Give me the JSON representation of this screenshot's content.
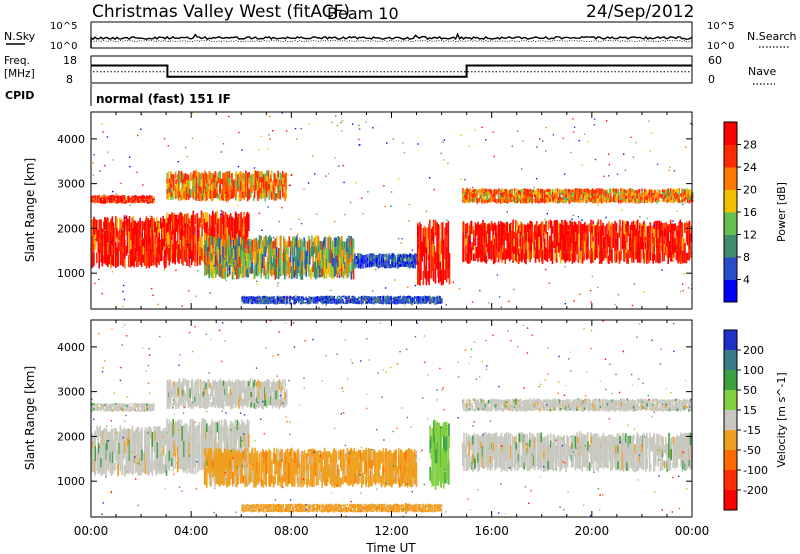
{
  "header": {
    "title": "Christmas Valley West (fitACF)",
    "beam": "Beam 10",
    "date": "24/Sep/2012"
  },
  "noise_panel": {
    "left_label": "N.Sky",
    "right_label": "N.Search",
    "tick_top": "10^5",
    "tick_bottom": "10^0",
    "colors": {
      "sky": "#000000",
      "search": "#000000"
    }
  },
  "freq_panel": {
    "left_label_1": "Freq.",
    "left_label_2": "[MHz]",
    "left_ticks": [
      "18",
      "8"
    ],
    "right_ticks": [
      "60",
      "0"
    ],
    "right_label": "Nave",
    "cpid_label": "CPID",
    "cpid_text": "normal (fast) 151 IF",
    "freq_series": [
      {
        "t": 0.0,
        "mhz": 14.5
      },
      {
        "t": 3.05,
        "mhz": 14.5
      },
      {
        "t": 3.05,
        "mhz": 10.3
      },
      {
        "t": 15.0,
        "mhz": 10.3
      },
      {
        "t": 15.0,
        "mhz": 14.5
      },
      {
        "t": 24.0,
        "mhz": 14.5
      }
    ],
    "nave_dotted_level": 25
  },
  "chart_data": [
    {
      "type": "heatmap",
      "title": "Power",
      "xlabel": "",
      "ylabel": "Slant Range [km]",
      "ylim": [
        200,
        4600
      ],
      "yticks": [
        "1000",
        "2000",
        "3000",
        "4000"
      ],
      "xlim": [
        0,
        24
      ],
      "colorbar": {
        "label": "Power [dB]",
        "tick_labels": [
          "4",
          "8",
          "12",
          "16",
          "20",
          "24",
          "28"
        ],
        "range": [
          0,
          32
        ],
        "colors": [
          "#0000ff",
          "#2a4cc8",
          "#3f8c6e",
          "#66c050",
          "#f0c000",
          "#ff7a00",
          "#ff2a00",
          "#ff0000"
        ]
      },
      "regions": [
        {
          "t0": 0.0,
          "t1": 3.0,
          "r0": 1100,
          "r1": 2300,
          "level": "high"
        },
        {
          "t0": 0.0,
          "t1": 2.5,
          "r0": 2550,
          "r1": 2750,
          "level": "high"
        },
        {
          "t0": 3.0,
          "t1": 6.3,
          "r0": 1150,
          "r1": 2400,
          "level": "high"
        },
        {
          "t0": 3.0,
          "t1": 7.8,
          "r0": 2600,
          "r1": 3300,
          "level": "mid"
        },
        {
          "t0": 4.5,
          "t1": 10.5,
          "r0": 850,
          "r1": 1850,
          "level": "mixed"
        },
        {
          "t0": 10.5,
          "t1": 13.0,
          "r0": 1100,
          "r1": 1450,
          "level": "low"
        },
        {
          "t0": 13.0,
          "t1": 14.3,
          "r0": 700,
          "r1": 2200,
          "level": "high"
        },
        {
          "t0": 14.8,
          "t1": 24.0,
          "r0": 1200,
          "r1": 2200,
          "level": "high"
        },
        {
          "t0": 14.8,
          "t1": 24.0,
          "r0": 2550,
          "r1": 2900,
          "level": "mid"
        },
        {
          "t0": 6.0,
          "t1": 14.0,
          "r0": 300,
          "r1": 500,
          "level": "low"
        }
      ]
    },
    {
      "type": "heatmap",
      "title": "Velocity",
      "xlabel": "Time UT",
      "ylabel": "Slant Range [km]",
      "ylim": [
        200,
        4600
      ],
      "yticks": [
        "1000",
        "2000",
        "3000",
        "4000"
      ],
      "xlim": [
        0,
        24
      ],
      "xticks": [
        "00:00",
        "04:00",
        "08:00",
        "12:00",
        "16:00",
        "20:00",
        "00:00"
      ],
      "colorbar": {
        "label": "Velocity [m s^-1]",
        "tick_labels": [
          "200",
          "100",
          "50",
          "15",
          "-15",
          "-50",
          "-100",
          "-200"
        ],
        "colors": [
          "#2030c8",
          "#3a7a8a",
          "#3aa040",
          "#80d040",
          "#c8c8c0",
          "#f0a020",
          "#ff6a00",
          "#ff2a00",
          "#ff0000"
        ]
      },
      "regions": [
        {
          "t0": 0.0,
          "t1": 3.0,
          "r0": 1100,
          "r1": 2250,
          "v": "gray"
        },
        {
          "t0": 0.0,
          "t1": 2.5,
          "r0": 2550,
          "r1": 2750,
          "v": "gray"
        },
        {
          "t0": 3.0,
          "t1": 6.3,
          "r0": 1150,
          "r1": 2400,
          "v": "gray"
        },
        {
          "t0": 3.0,
          "t1": 7.8,
          "r0": 2600,
          "r1": 3300,
          "v": "gray"
        },
        {
          "t0": 4.5,
          "t1": 13.0,
          "r0": 850,
          "r1": 1750,
          "v": "orange"
        },
        {
          "t0": 13.5,
          "t1": 14.3,
          "r0": 800,
          "r1": 2400,
          "v": "green"
        },
        {
          "t0": 14.8,
          "t1": 24.0,
          "r0": 1200,
          "r1": 2100,
          "v": "gray"
        },
        {
          "t0": 14.8,
          "t1": 24.0,
          "r0": 2550,
          "r1": 2850,
          "v": "gray"
        },
        {
          "t0": 6.0,
          "t1": 14.0,
          "r0": 300,
          "r1": 500,
          "v": "orange"
        }
      ]
    }
  ]
}
